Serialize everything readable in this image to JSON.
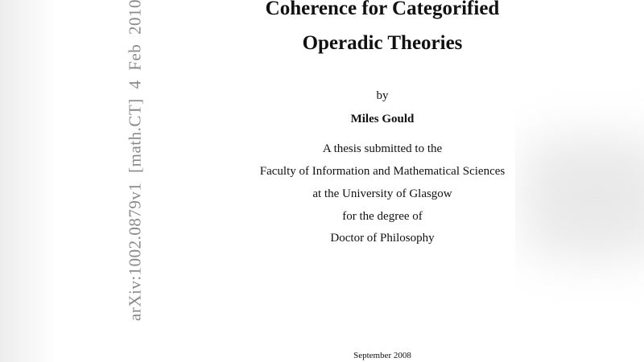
{
  "side_label": "arXiv:1002.0879v1  [math.CT]  4 Feb 2010",
  "title": {
    "line1": "Coherence for Categorified",
    "line2": "Operadic Theories"
  },
  "by": "by",
  "author": "Miles Gould",
  "submission": [
    "A thesis submitted to the",
    "Faculty of Information and Mathematical Sciences",
    "at the University of Glasgow",
    "for the degree of",
    "Doctor of Philosophy"
  ],
  "date": "September 2008"
}
